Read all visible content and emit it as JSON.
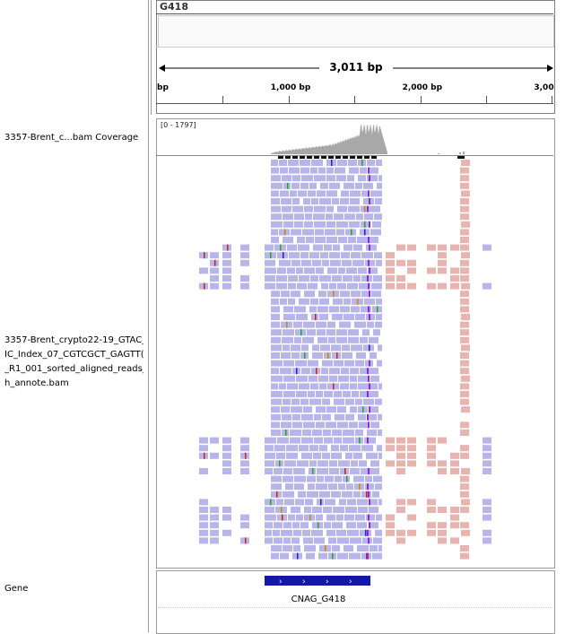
{
  "locus": {
    "name": "G418",
    "span_label": "3,011 bp",
    "ruler_ticks": [
      {
        "label": "bp",
        "bp": 0
      },
      {
        "label": "1,000 bp",
        "bp": 1000
      },
      {
        "label": "2,000 bp",
        "bp": 2000
      },
      {
        "label": "3,00",
        "bp": 3000
      }
    ]
  },
  "tracks": {
    "coverage": {
      "name": "3357-Brent_c...bam Coverage",
      "range": "[0 - 1797]"
    },
    "alignment": {
      "name_lines": [
        "3357-Brent_crypto22-19_GTAC_",
        "IC_Index_07_CGTCGCT_GAGTT(",
        "_R1_001_sorted_aligned_reads_(",
        "h_annote.bam"
      ]
    },
    "gene": {
      "name": "Gene",
      "feature_label": "CNAG_G418"
    }
  },
  "colors": {
    "forward_read": "#b8b5e8",
    "reverse_read": "#e8b4b0",
    "coverage": "#a8a8a8",
    "gene": "#1418a8",
    "mismatch_a": "#29a329",
    "mismatch_c": "#2020cc",
    "mismatch_g": "#cc8800",
    "mismatch_t": "#cc2020",
    "insertion": "#8a2be2"
  }
}
